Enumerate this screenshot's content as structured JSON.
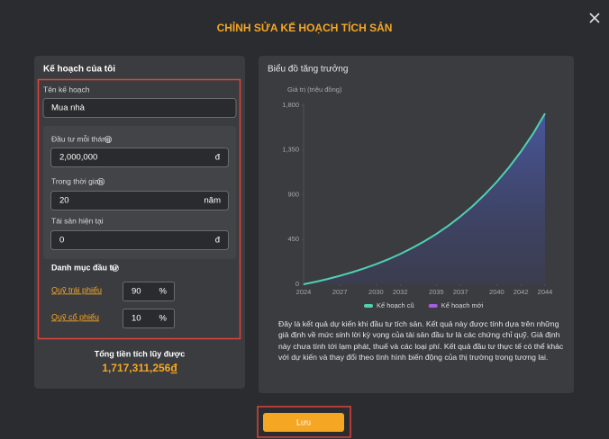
{
  "modal": {
    "title": "CHỈNH SỬA KẾ HOẠCH TÍCH SẢN"
  },
  "plan": {
    "heading": "Kế hoạch của tôi",
    "name_label": "Tên kế hoạch",
    "name_value": "Mua nhà",
    "monthly_label": "Đầu tư mỗi tháng",
    "monthly_value": "2,000,000",
    "monthly_unit": "đ",
    "duration_label": "Trong thời gian",
    "duration_value": "20",
    "duration_unit": "năm",
    "assets_label": "Tài sản hiện tại",
    "assets_value": "0",
    "assets_unit": "đ",
    "portfolio_label": "Danh mục đầu tư",
    "funds": [
      {
        "name": "Quỹ trái phiếu",
        "value": "90",
        "unit": "%"
      },
      {
        "name": "Quỹ cổ phiếu",
        "value": "10",
        "unit": "%"
      }
    ],
    "total_label": "Tổng tiền tích lũy được",
    "total_value": "1,717,311,256",
    "total_currency": "đ"
  },
  "chart_data": {
    "type": "line",
    "title": "Biểu đồ tăng trưởng",
    "y_label": "Giá trị (triệu đồng)",
    "x": [
      2024,
      2025,
      2026,
      2027,
      2028,
      2029,
      2030,
      2031,
      2032,
      2033,
      2034,
      2035,
      2036,
      2037,
      2038,
      2039,
      2040,
      2041,
      2042,
      2043,
      2044
    ],
    "xlim": [
      2024,
      2044
    ],
    "xticks": [
      2024,
      2027,
      2030,
      2032,
      2035,
      2037,
      2040,
      2042,
      2044
    ],
    "ylim": [
      0,
      1800
    ],
    "yticks": [
      0,
      450,
      900,
      {
        "value": 1350,
        "label": "1,350"
      },
      {
        "value": 1800,
        "label": "1,800"
      }
    ],
    "area_fill": true,
    "series": [
      {
        "name": "Kế hoạch cũ",
        "color": "#4fd1b0",
        "values": [
          0,
          25,
          53,
          85,
          120,
          159,
          202,
          250,
          304,
          365,
          432,
          506,
          590,
          683,
          786,
          902,
          1030,
          1174,
          1334,
          1512,
          1717
        ]
      },
      {
        "name": "Kế hoạch mới",
        "color": "#a45ee0",
        "values": [
          null,
          null,
          null,
          null,
          null,
          null,
          null,
          null,
          null,
          null,
          null,
          null,
          null,
          null,
          null,
          null,
          null,
          null,
          null,
          null,
          null
        ]
      }
    ]
  },
  "description": "Đây là kết quả dự kiến khi đầu tư tích sản. Kết quả này được tính dựa trên những giả định về mức sinh lời kỳ vọng của tài sản đầu tư là các chứng chỉ quỹ. Giả định này chưa tính tới lạm phát, thuế và các loại phí. Kết quả đầu tư thực tế có thể khác với dự kiến và thay đổi theo tình hình biến động của thị trường trong tương lai.",
  "save_button": "Lưu"
}
